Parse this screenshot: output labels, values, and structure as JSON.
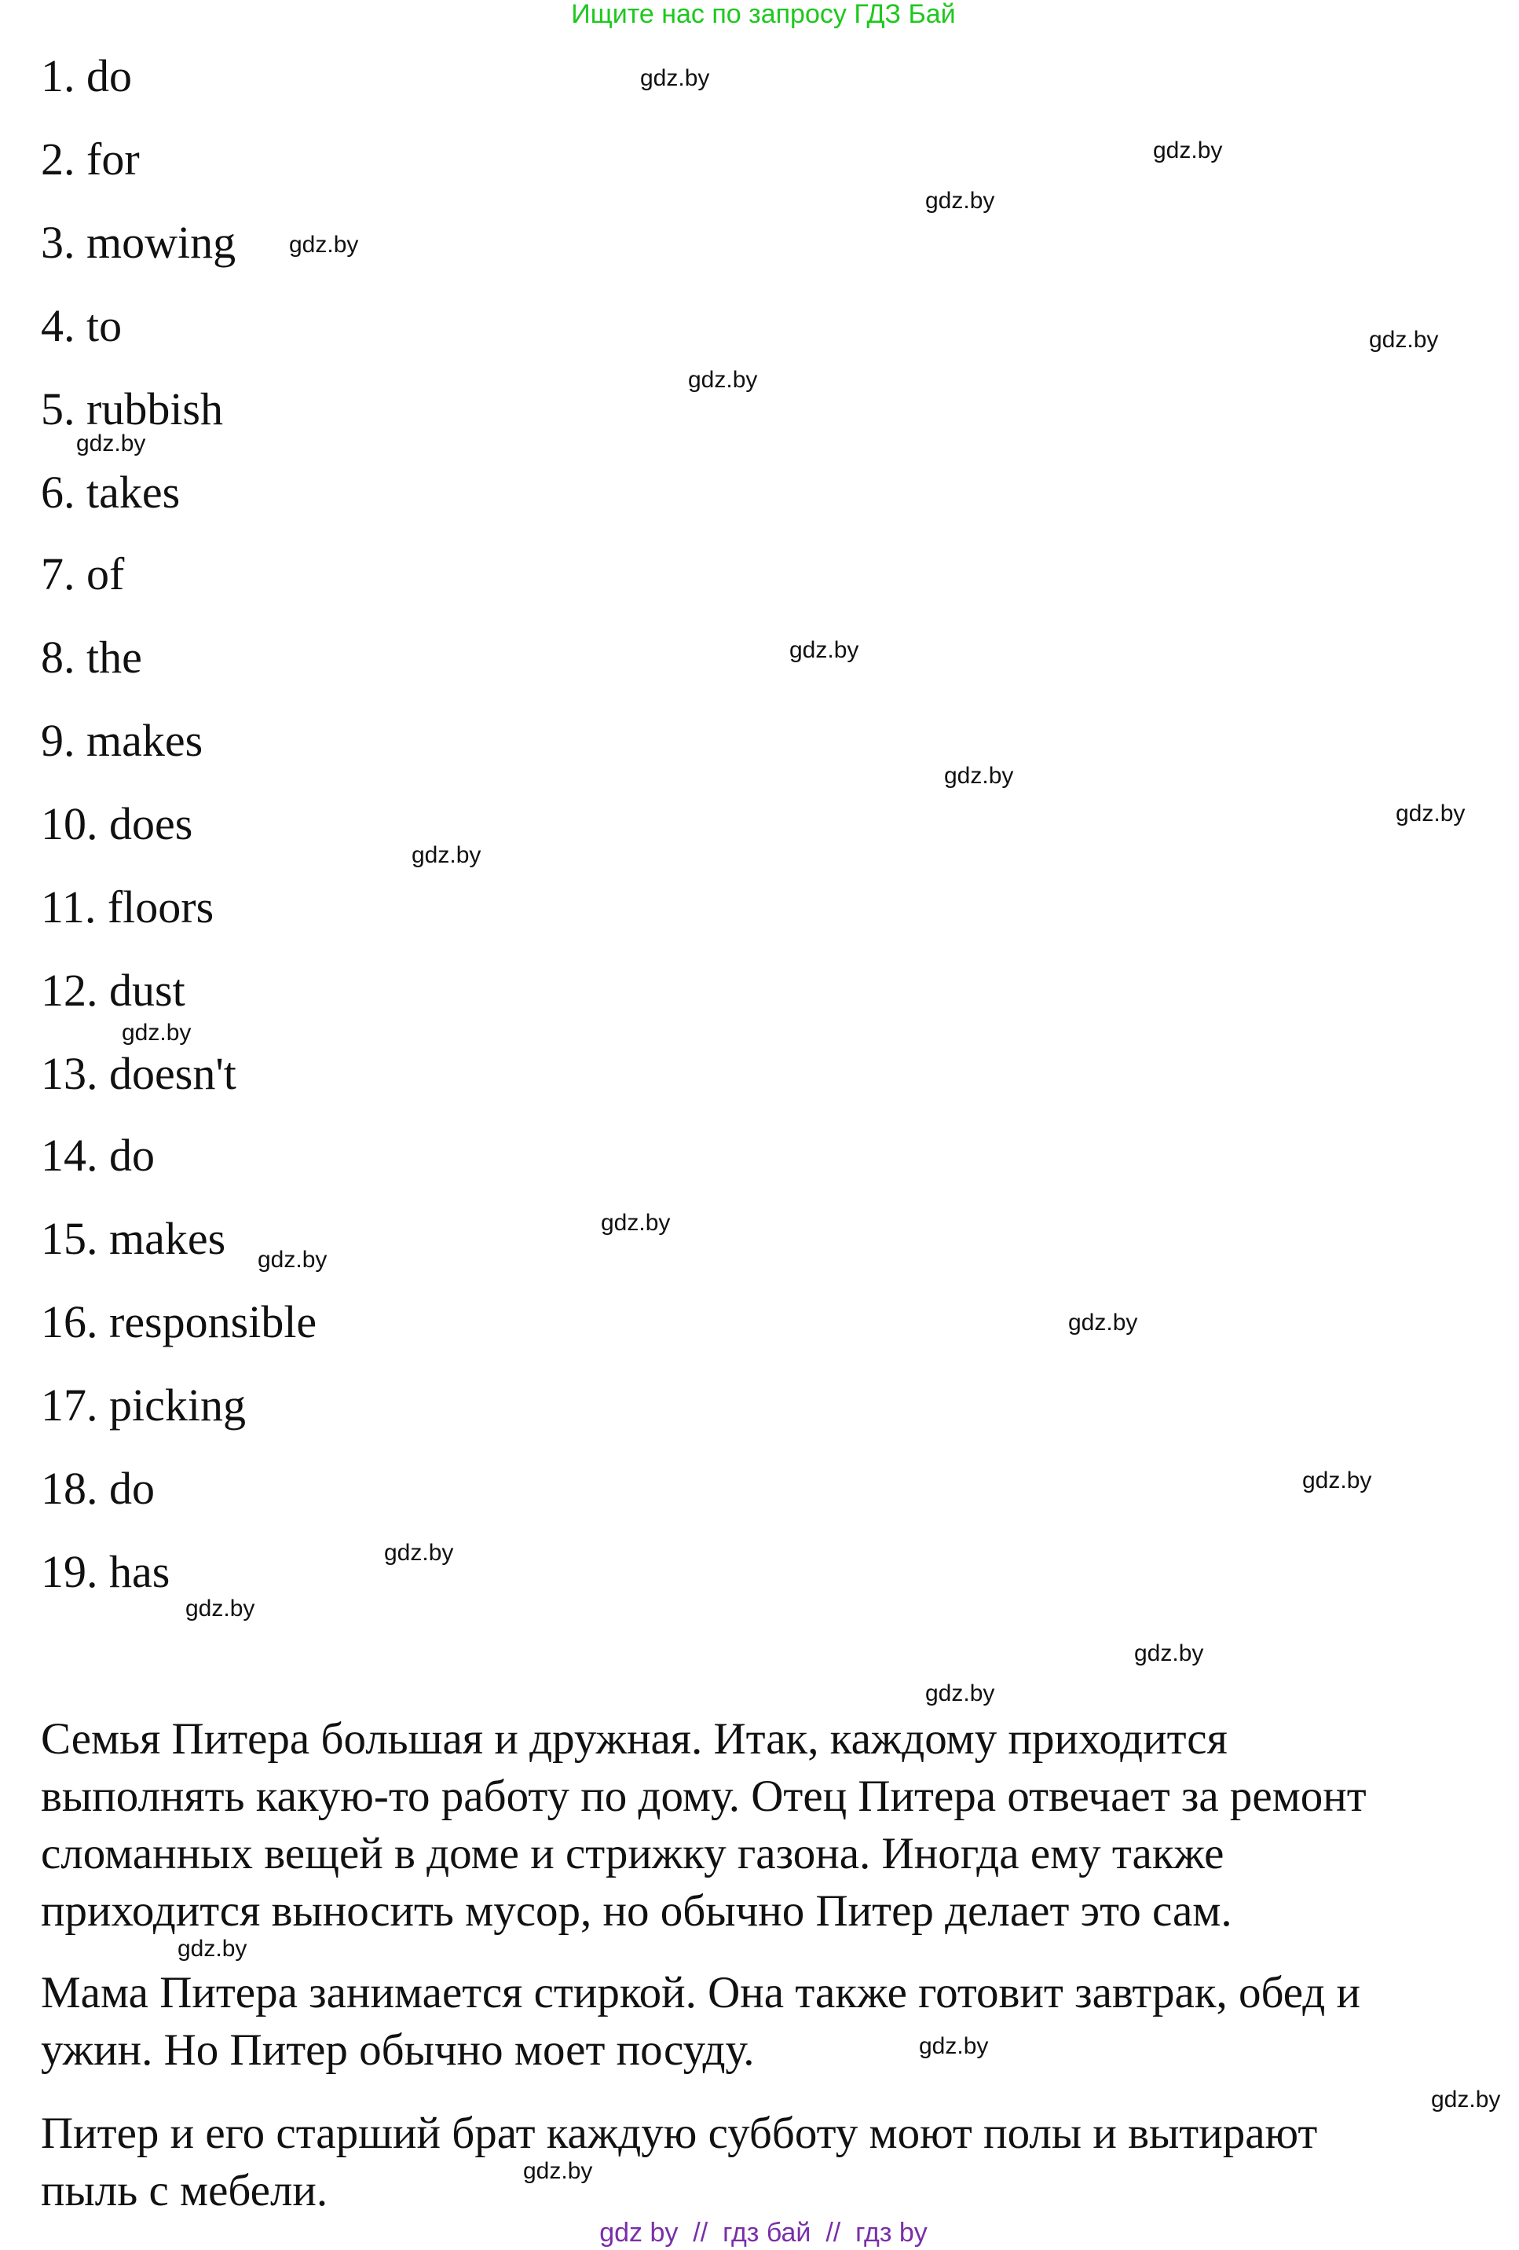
{
  "header": {
    "text": "Ищите нас по запросу ГДЗ Бай",
    "color": "#1ec81e"
  },
  "answers": [
    "1. do",
    "2. for",
    "3. mowing",
    "4. to",
    "5. rubbish",
    "6. takes",
    "7. of",
    "8. the",
    "9. makes",
    "10. does",
    "11. floors",
    "12. dust",
    "13. doesn't",
    "14. do",
    "15. makes",
    "16. responsible",
    "17. picking",
    "18. do",
    "19. has"
  ],
  "watermark": "gdz.by",
  "translation": [
    [
      "Семья Питера большая и дружная. Итак, каждому приходится",
      "выполнять какую-то работу по дому. Отец Питера отвечает за ремонт",
      "сломанных вещей в доме и стрижку газона. Иногда ему также",
      "приходится выносить мусор, но обычно Питер делает это сам."
    ],
    [
      "Мама Питера занимается стиркой. Она также готовит завтрак, обед и",
      "ужин. Но Питер обычно моет посуду."
    ],
    [
      "Питер и его старший брат каждую субботу моют полы и вытирают",
      "пыль с мебели."
    ]
  ],
  "footer": {
    "text": "gdz by  //  гдз бай  //  гдз by",
    "color": "#7a2fa8"
  }
}
